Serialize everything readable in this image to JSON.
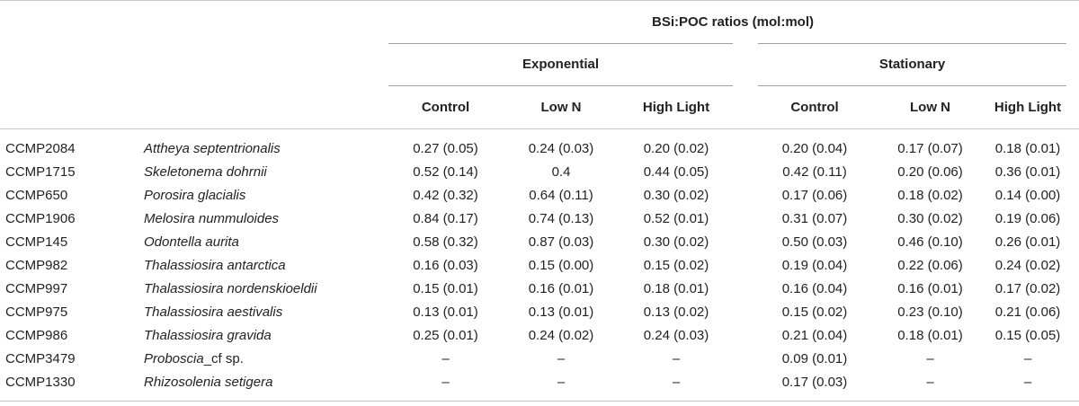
{
  "table": {
    "title": "BSi:POC ratios (mol:mol)",
    "groups": [
      "Exponential",
      "Stationary"
    ],
    "columns": [
      "Control",
      "Low N",
      "High Light",
      "Control",
      "Low N",
      "High Light"
    ],
    "rows": [
      {
        "code": "CCMP2084",
        "species": "Attheya septentrionalis",
        "values": [
          "0.27 (0.05)",
          "0.24 (0.03)",
          "0.20 (0.02)",
          "0.20 (0.04)",
          "0.17 (0.07)",
          "0.18 (0.01)"
        ]
      },
      {
        "code": "CCMP1715",
        "species": "Skeletonema dohrnii",
        "values": [
          "0.52 (0.14)",
          "0.4",
          "0.44 (0.05)",
          "0.42 (0.11)",
          "0.20 (0.06)",
          "0.36 (0.01)"
        ]
      },
      {
        "code": "CCMP650",
        "species": "Porosira glacialis",
        "values": [
          "0.42 (0.32)",
          "0.64 (0.11)",
          "0.30 (0.02)",
          "0.17 (0.06)",
          "0.18 (0.02)",
          "0.14 (0.00)"
        ]
      },
      {
        "code": "CCMP1906",
        "species": "Melosira nummuloides",
        "values": [
          "0.84 (0.17)",
          "0.74 (0.13)",
          "0.52 (0.01)",
          "0.31 (0.07)",
          "0.30 (0.02)",
          "0.19 (0.06)"
        ]
      },
      {
        "code": "CCMP145",
        "species": "Odontella aurita",
        "values": [
          "0.58 (0.32)",
          "0.87 (0.03)",
          "0.30 (0.02)",
          "0.50 (0.03)",
          "0.46 (0.10)",
          "0.26 (0.01)"
        ]
      },
      {
        "code": "CCMP982",
        "species": "Thalassiosira antarctica",
        "values": [
          "0.16 (0.03)",
          "0.15 (0.00)",
          "0.15 (0.02)",
          "0.19 (0.04)",
          "0.22 (0.06)",
          "0.24 (0.02)"
        ]
      },
      {
        "code": "CCMP997",
        "species": "Thalassiosira nordenskioeldii",
        "values": [
          "0.15 (0.01)",
          "0.16 (0.01)",
          "0.18 (0.01)",
          "0.16 (0.04)",
          "0.16 (0.01)",
          "0.17 (0.02)"
        ]
      },
      {
        "code": "CCMP975",
        "species": "Thalassiosira aestivalis",
        "values": [
          "0.13 (0.01)",
          "0.13 (0.01)",
          "0.13 (0.02)",
          "0.15 (0.02)",
          "0.23 (0.10)",
          "0.21 (0.06)"
        ]
      },
      {
        "code": "CCMP986",
        "species": "Thalassiosira gravida",
        "values": [
          "0.25 (0.01)",
          "0.24 (0.02)",
          "0.24 (0.03)",
          "0.21 (0.04)",
          "0.18 (0.01)",
          "0.15 (0.05)"
        ]
      },
      {
        "code": "CCMP3479",
        "species_italic": "Proboscia",
        "species_plain": "_cf sp.",
        "values": [
          "–",
          "–",
          "–",
          "0.09 (0.01)",
          "–",
          "–"
        ]
      },
      {
        "code": "CCMP1330",
        "species": "Rhizosolenia setigera",
        "values": [
          "–",
          "–",
          "–",
          "0.17 (0.03)",
          "–",
          "–"
        ]
      }
    ]
  }
}
